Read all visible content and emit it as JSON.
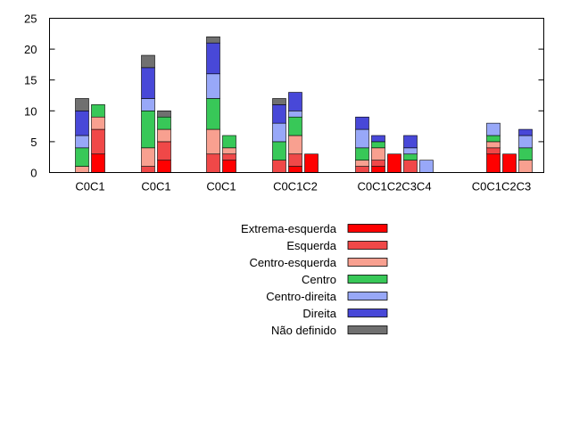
{
  "chart_data": {
    "type": "bar",
    "stacked": true,
    "ylim": [
      0,
      25
    ],
    "yticks": [
      0,
      5,
      10,
      15,
      20,
      25
    ],
    "grid": false,
    "legend_position": "bottom-center",
    "categories": [
      "C0C1",
      "C0C1",
      "C0C1",
      "C0C1C2",
      "C0C1C2C3C4",
      "C0C1C2C3"
    ],
    "series": [
      {
        "name": "Extrema-esquerda",
        "color": "#ff0000"
      },
      {
        "name": "Esquerda",
        "color": "#f04848"
      },
      {
        "name": "Centro-esquerda",
        "color": "#f8a090"
      },
      {
        "name": "Centro",
        "color": "#38c858"
      },
      {
        "name": "Centro-direita",
        "color": "#98a8f8"
      },
      {
        "name": "Direita",
        "color": "#4848d8"
      },
      {
        "name": "Não definido",
        "color": "#707070"
      }
    ],
    "groups": [
      {
        "bars": [
          [
            0,
            0,
            1,
            3,
            2,
            4,
            2
          ],
          [
            3,
            4,
            2,
            2,
            0,
            0,
            0
          ]
        ]
      },
      {
        "bars": [
          [
            0,
            1,
            3,
            6,
            2,
            5,
            2
          ],
          [
            2,
            3,
            2,
            2,
            0,
            0,
            1
          ]
        ]
      },
      {
        "bars": [
          [
            0,
            3,
            4,
            5,
            4,
            5,
            1
          ],
          [
            2,
            1,
            1,
            2,
            0,
            0,
            0
          ]
        ]
      },
      {
        "bars": [
          [
            0,
            2,
            0,
            3,
            3,
            3,
            1
          ],
          [
            1,
            2,
            3,
            3,
            1,
            3,
            0
          ],
          [
            3,
            0,
            0,
            0,
            0,
            0,
            0
          ]
        ]
      },
      {
        "bars": [
          [
            0,
            1,
            1,
            2,
            3,
            2,
            0
          ],
          [
            1,
            1,
            2,
            1,
            0,
            1,
            0
          ],
          [
            3,
            0,
            0,
            0,
            0,
            0,
            0
          ],
          [
            0,
            2,
            0,
            1,
            1,
            2,
            0
          ],
          [
            0,
            0,
            0,
            0,
            2,
            0,
            0
          ]
        ]
      },
      {
        "bars": [
          [
            0,
            0,
            0,
            0,
            0,
            0,
            0
          ],
          [
            3,
            1,
            1,
            1,
            2,
            0,
            0
          ],
          [
            3,
            0,
            0,
            0,
            0,
            0,
            0
          ],
          [
            0,
            0,
            2,
            2,
            2,
            1,
            0
          ]
        ]
      }
    ]
  }
}
